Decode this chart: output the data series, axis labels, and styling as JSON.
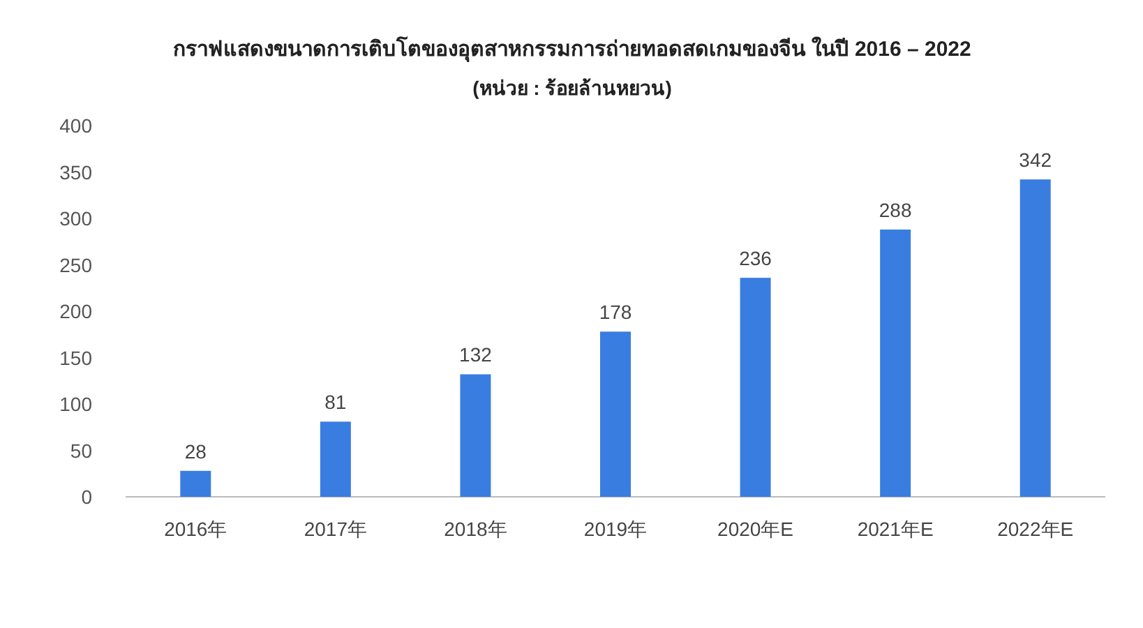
{
  "chart_data": {
    "type": "bar",
    "title": "กราฟแสดงขนาดการเติบโตของอุตสาหกรรมการถ่ายทอดสดเกมของจีน ในปี 2016 – 2022",
    "subtitle": "(หน่วย : ร้อยล้านหยวน)",
    "categories": [
      "2016年",
      "2017年",
      "2018年",
      "2019年",
      "2020年E",
      "2021年E",
      "2022年E"
    ],
    "values": [
      28,
      81,
      132,
      178,
      236,
      288,
      342
    ],
    "color": "#3a7de0",
    "ylim": [
      0,
      400
    ],
    "yticks": [
      0,
      50,
      100,
      150,
      200,
      250,
      300,
      350,
      400
    ],
    "data_labels": true,
    "grid": false
  }
}
